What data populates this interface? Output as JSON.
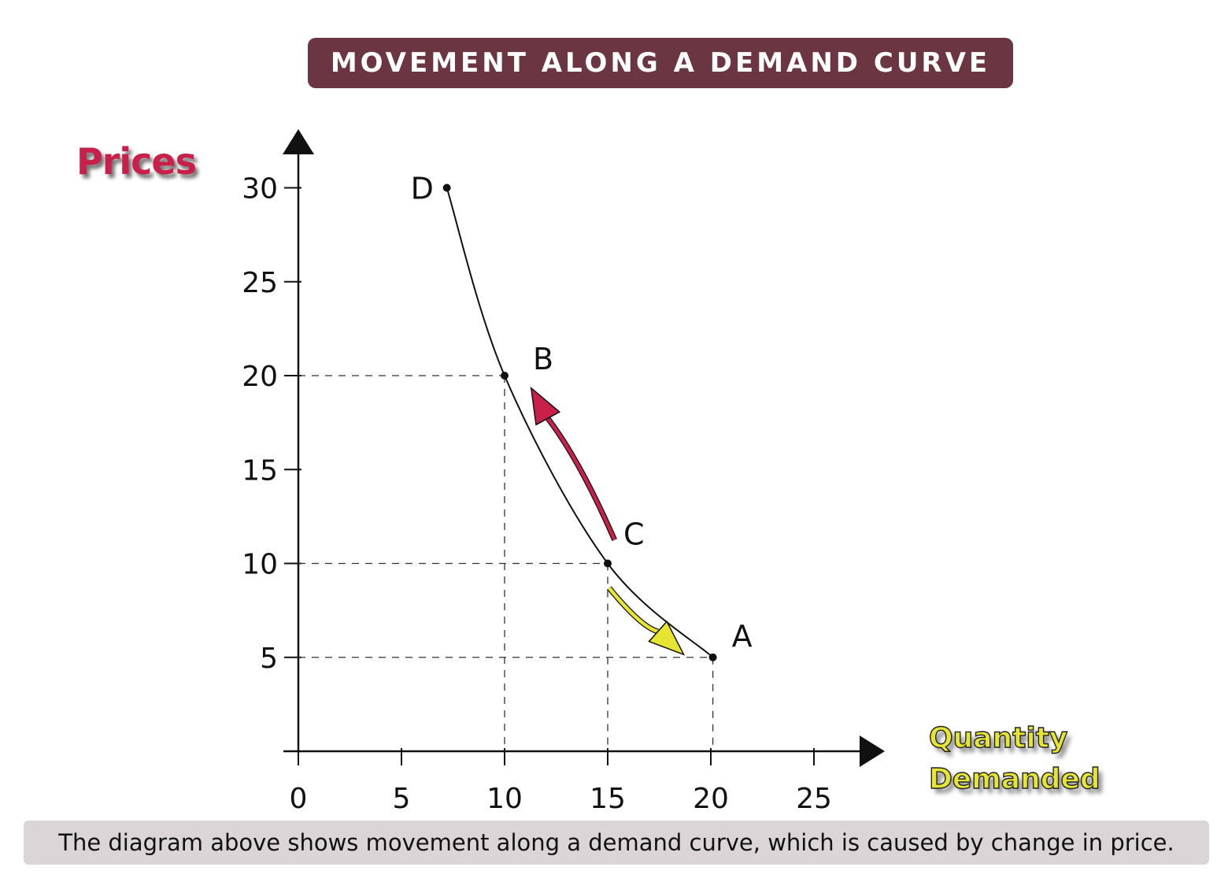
{
  "title": "MOVEMENT ALONG A DEMAND CURVE",
  "caption": "The diagram above shows movement along a demand curve, which is caused by change in price.",
  "colors": {
    "banner": "#6b3541",
    "price_up_arrow": "#c8204a",
    "price_down_arrow": "#e6e632",
    "caption_bg": "#dcd5d8"
  },
  "chart_data": {
    "type": "line",
    "title": "MOVEMENT ALONG A DEMAND CURVE",
    "xlabel_lines": [
      "Quantity",
      "Demanded"
    ],
    "ylabel": "Prices",
    "xlim": [
      0,
      25
    ],
    "ylim": [
      0,
      30
    ],
    "x_ticks": [
      0,
      5,
      10,
      15,
      20,
      25
    ],
    "y_ticks": [
      5,
      10,
      15,
      20,
      25,
      30
    ],
    "grid": false,
    "series": [
      {
        "x": [
          7.2,
          10,
          15,
          20.1
        ],
        "y": [
          30,
          20,
          10,
          5
        ]
      }
    ],
    "points": [
      {
        "label": "D",
        "x": 7.2,
        "y": 30
      },
      {
        "label": "B",
        "x": 10,
        "y": 20
      },
      {
        "label": "C",
        "x": 15,
        "y": 10
      },
      {
        "label": "A",
        "x": 20.1,
        "y": 5
      }
    ],
    "guide_points": [
      "B",
      "C",
      "A"
    ],
    "annotations": [
      {
        "from": "C",
        "to": "B",
        "color": "#c8204a",
        "meaning": "price increase"
      },
      {
        "from": "C",
        "to": "A",
        "color": "#e6e632",
        "meaning": "price decrease"
      }
    ]
  }
}
